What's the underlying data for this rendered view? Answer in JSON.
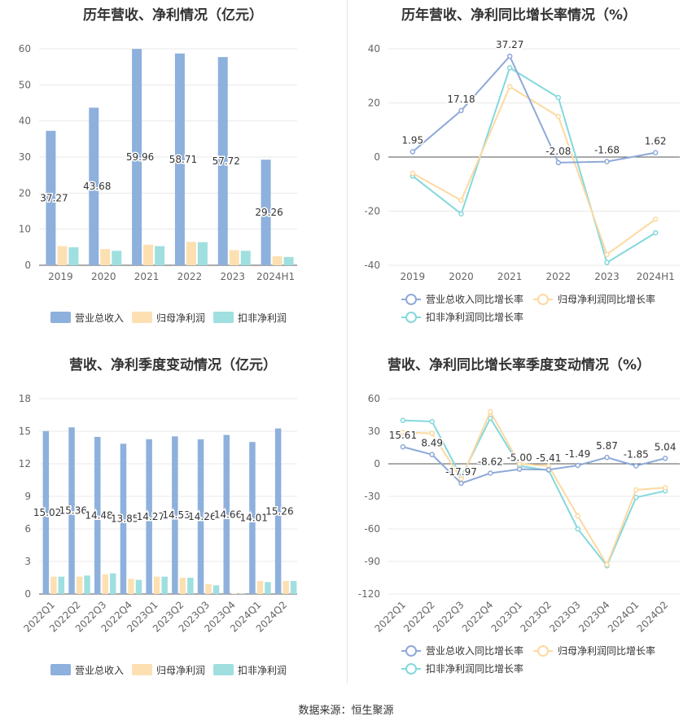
{
  "source_label": "数据来源：恒生聚源",
  "colors": {
    "revenue": "#8eb0dc",
    "net_profit": "#fde0b2",
    "deducted_profit": "#9fdfe0",
    "revenue_line": "#8ea9d8",
    "net_line": "#fdd9a0",
    "deducted_line": "#84d8dc"
  },
  "chart_data": [
    {
      "type": "bar",
      "title": "历年营收、净利情况（亿元）",
      "categories": [
        "2019",
        "2020",
        "2021",
        "2022",
        "2023",
        "2024H1"
      ],
      "ylim": [
        0,
        60
      ],
      "yticks": [
        0,
        10,
        20,
        30,
        40,
        50,
        60
      ],
      "legend_position": "bottom",
      "series": [
        {
          "name": "营业总收入",
          "values": [
            37.27,
            43.68,
            59.96,
            58.71,
            57.72,
            29.26
          ],
          "labels": [
            "37.27",
            "43.68",
            "59.96",
            "58.71",
            "57.72",
            "29.26"
          ]
        },
        {
          "name": "归母净利润",
          "values": [
            5.3,
            4.5,
            5.7,
            6.5,
            4.2,
            2.5
          ]
        },
        {
          "name": "扣非净利润",
          "values": [
            5.0,
            4.0,
            5.3,
            6.4,
            4.0,
            2.3
          ]
        }
      ]
    },
    {
      "type": "line",
      "title": "历年营收、净利同比增长率情况（%）",
      "categories": [
        "2019",
        "2020",
        "2021",
        "2022",
        "2023",
        "2024H1"
      ],
      "ylim": [
        -40,
        40
      ],
      "yticks": [
        -40,
        -20,
        0,
        20,
        40
      ],
      "legend_position": "bottom",
      "series": [
        {
          "name": "营业总收入同比增长率",
          "values": [
            1.95,
            17.18,
            37.27,
            -2.08,
            -1.68,
            1.62
          ],
          "labels": [
            "1.95",
            "17.18",
            "37.27",
            "-2.08",
            "-1.68",
            "1.62"
          ]
        },
        {
          "name": "归母净利润同比增长率",
          "values": [
            -6,
            -16,
            26,
            15,
            -36,
            -23
          ]
        },
        {
          "name": "扣非净利润同比增长率",
          "values": [
            -7,
            -21,
            33,
            22,
            -39,
            -28
          ]
        }
      ]
    },
    {
      "type": "bar",
      "title": "营收、净利季度变动情况（亿元）",
      "categories": [
        "2022Q1",
        "2022Q2",
        "2022Q3",
        "2022Q4",
        "2023Q1",
        "2023Q2",
        "2023Q3",
        "2023Q4",
        "2024Q1",
        "2024Q2"
      ],
      "ylim": [
        0,
        18
      ],
      "yticks": [
        0,
        3,
        6,
        9,
        12,
        15,
        18
      ],
      "legend_position": "bottom",
      "series": [
        {
          "name": "营业总收入",
          "values": [
            15.02,
            15.36,
            14.48,
            13.85,
            14.27,
            14.53,
            14.26,
            14.66,
            14.01,
            15.26
          ],
          "labels": [
            "15.02",
            "15.36",
            "14.48",
            "13.85",
            "14.27",
            "14.53",
            "14.26",
            "14.66",
            "14.01",
            "15.26"
          ]
        },
        {
          "name": "归母净利润",
          "values": [
            1.6,
            1.6,
            1.8,
            1.4,
            1.6,
            1.5,
            0.9,
            0.05,
            1.2,
            1.2
          ]
        },
        {
          "name": "扣非净利润",
          "values": [
            1.6,
            1.7,
            1.9,
            1.3,
            1.6,
            1.5,
            0.8,
            0.03,
            1.1,
            1.2
          ]
        }
      ]
    },
    {
      "type": "line",
      "title": "营收、净利同比增长率季度变动情况（%）",
      "categories": [
        "2022Q1",
        "2022Q2",
        "2022Q3",
        "2022Q4",
        "2023Q1",
        "2023Q2",
        "2023Q3",
        "2023Q4",
        "2024Q1",
        "2024Q2"
      ],
      "ylim": [
        -120,
        60
      ],
      "yticks": [
        -120,
        -90,
        -60,
        -30,
        0,
        30,
        60
      ],
      "legend_position": "bottom",
      "series": [
        {
          "name": "营业总收入同比增长率",
          "values": [
            15.61,
            8.49,
            -17.97,
            -8.62,
            -5.0,
            -5.41,
            -1.49,
            5.87,
            -1.85,
            5.04
          ],
          "labels": [
            "15.61",
            "8.49",
            "-17.97",
            "-8.62",
            "-5.00",
            "-5.41",
            "-1.49",
            "5.87",
            "-1.85",
            "5.04"
          ]
        },
        {
          "name": "归母净利润同比增长率",
          "values": [
            29,
            28,
            -14,
            48,
            0,
            -2,
            -48,
            -93,
            -24,
            -22
          ]
        },
        {
          "name": "扣非净利润同比增长率",
          "values": [
            40,
            39,
            -12,
            42,
            -2,
            -6,
            -60,
            -94,
            -31,
            -25
          ]
        }
      ]
    }
  ]
}
